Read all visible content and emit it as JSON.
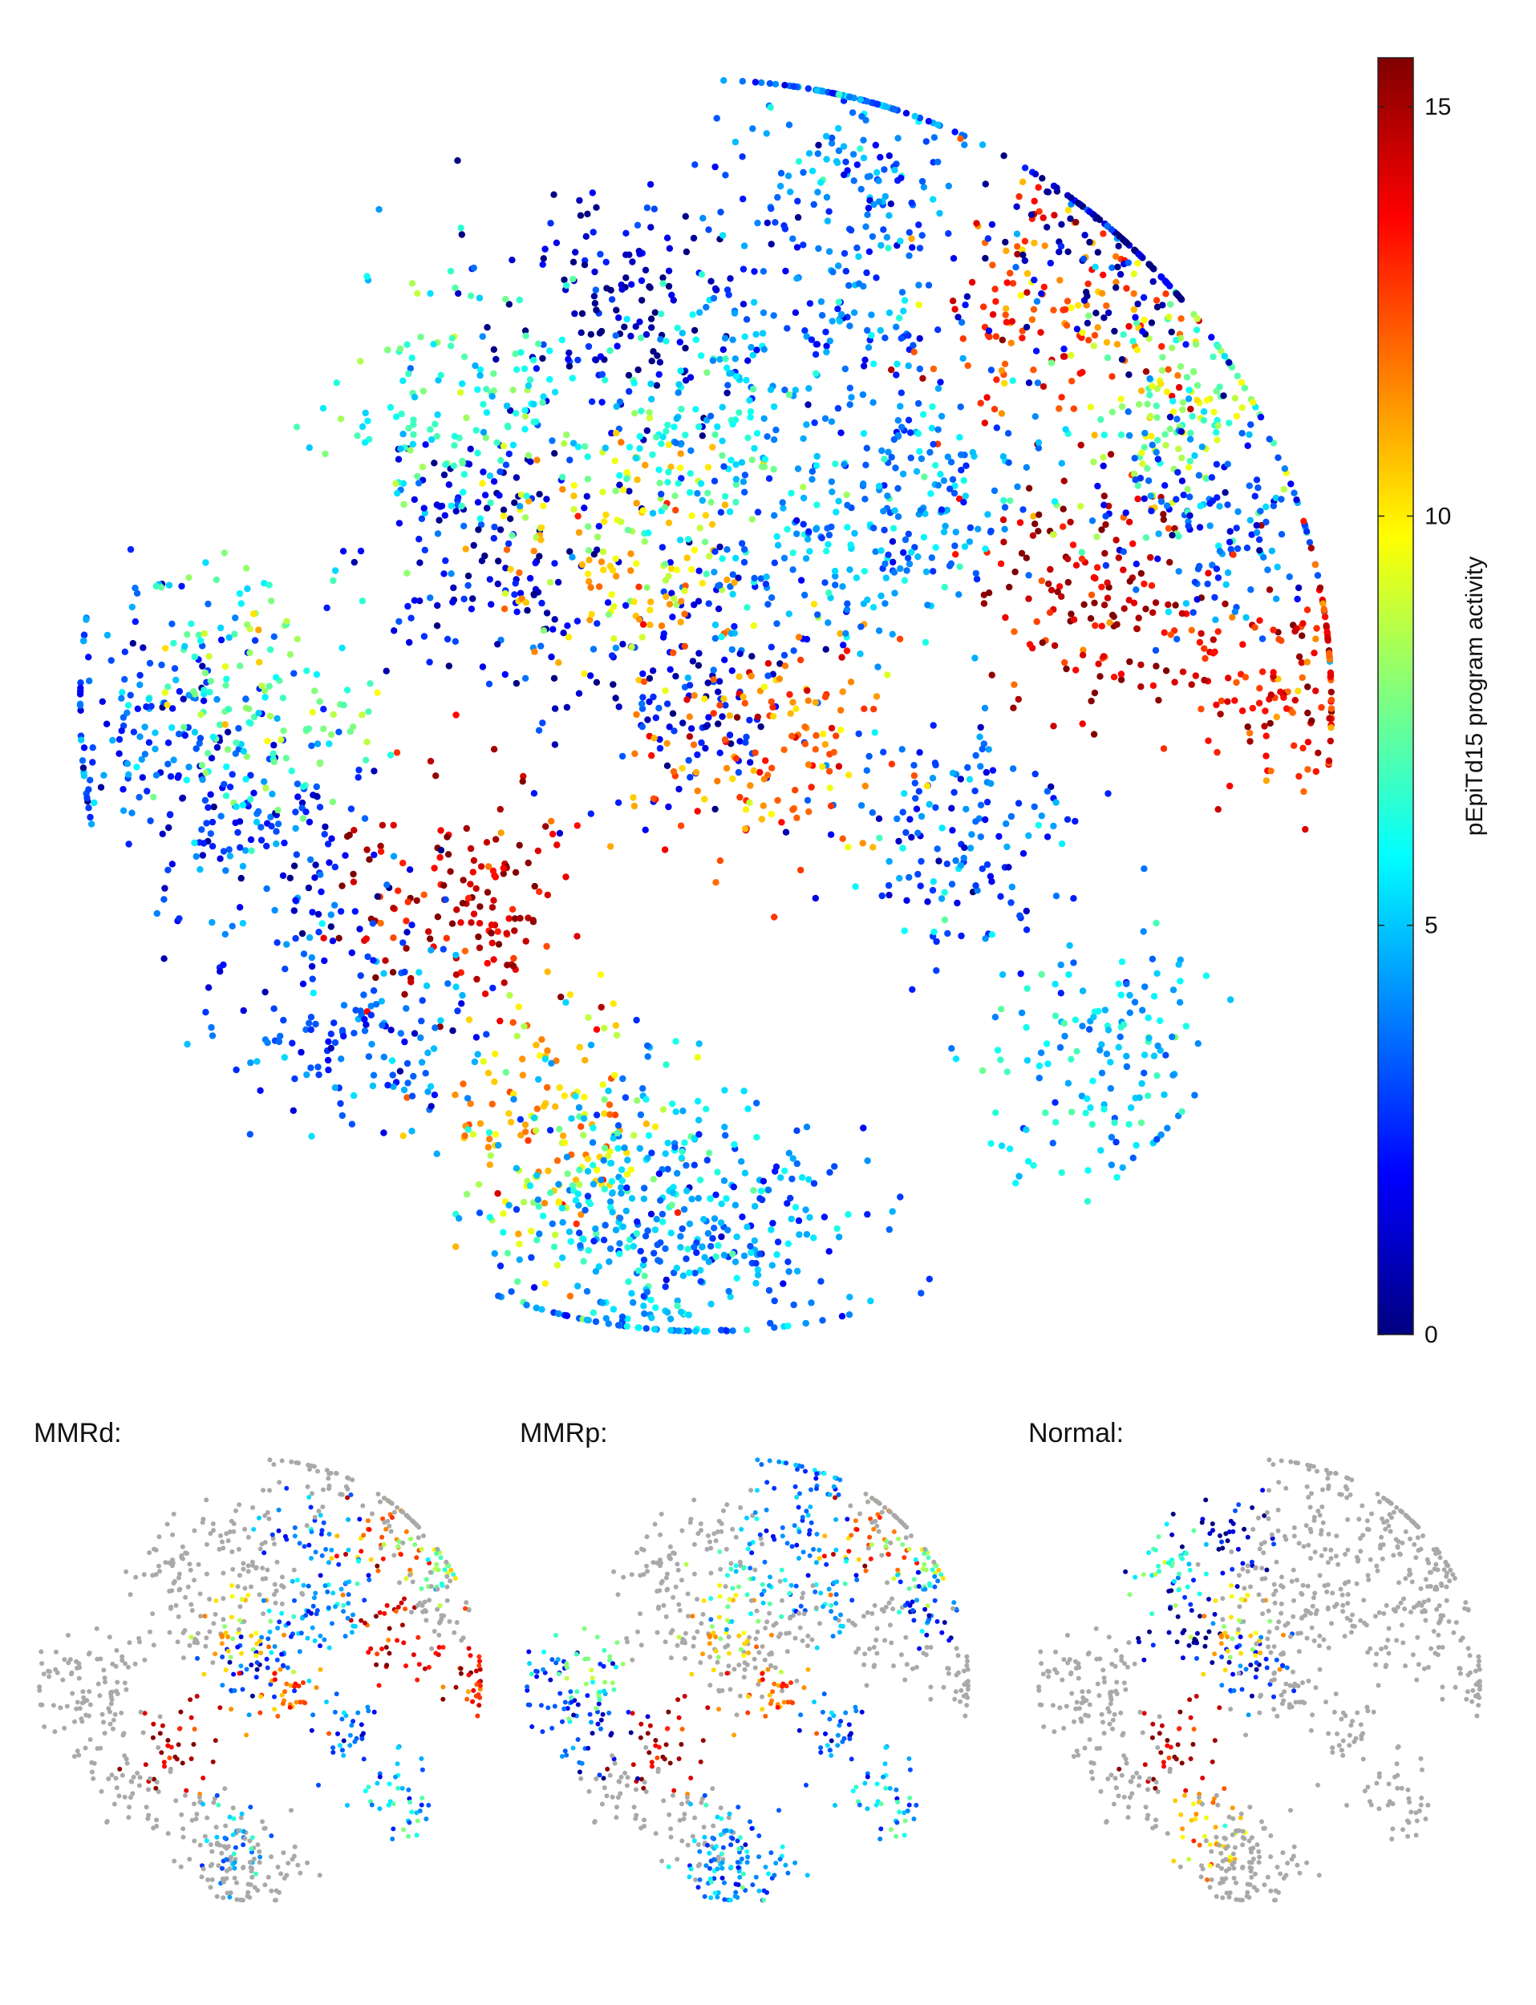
{
  "chart_data": [
    {
      "type": "scatter",
      "title": "",
      "xlabel": "",
      "ylabel": "",
      "axes_visible": false,
      "color_by": "pEpiTd15 program activity",
      "colormap": "jet",
      "colorbar": {
        "label": "pEpiTd15 program activity",
        "ticks": [
          0,
          5,
          10,
          15
        ],
        "tick_labels": [
          "0",
          "5",
          "10",
          "15"
        ],
        "range": [
          0,
          15.6
        ],
        "placement": "right"
      },
      "clusters": [
        {
          "x": -0.14,
          "y": 0.64,
          "level": 1.0
        },
        {
          "x": -0.35,
          "y": 0.26,
          "level": 1.5
        },
        {
          "x": -0.05,
          "y": 0.04,
          "level": 2.0
        },
        {
          "x": 0.41,
          "y": -0.23,
          "level": 3.5
        },
        {
          "x": -0.38,
          "y": -0.3,
          "level": 14.5
        },
        {
          "x": -0.24,
          "y": -0.68,
          "level": 10.5
        },
        {
          "x": -0.7,
          "y": -0.22,
          "level": 2.5
        },
        {
          "x": -0.88,
          "y": -0.02,
          "level": 3.0
        },
        {
          "x": -0.72,
          "y": 0.02,
          "level": 7.5
        },
        {
          "x": -0.12,
          "y": 0.24,
          "level": 10.0
        },
        {
          "x": 0.21,
          "y": 0.68,
          "level": 3.5
        },
        {
          "x": 0.26,
          "y": 0.94,
          "level": 4.0
        },
        {
          "x": 0.56,
          "y": 0.63,
          "level": 12.5
        },
        {
          "x": 0.62,
          "y": 0.2,
          "level": 14.5
        },
        {
          "x": 0.78,
          "y": 0.48,
          "level": 8.0
        },
        {
          "x": 0.82,
          "y": 0.29,
          "level": 3.0
        },
        {
          "x": 0.65,
          "y": 0.76,
          "level": 1.0
        },
        {
          "x": 0.95,
          "y": 0.04,
          "level": 13.5
        },
        {
          "x": 0.1,
          "y": -0.06,
          "level": 12.0
        },
        {
          "x": 0.36,
          "y": 0.36,
          "level": 4.5
        },
        {
          "x": 0.2,
          "y": 0.26,
          "level": 4.0
        },
        {
          "x": 0.64,
          "y": -0.56,
          "level": 5.0
        },
        {
          "x": 0.07,
          "y": -0.84,
          "level": 4.0
        },
        {
          "x": -0.12,
          "y": -0.74,
          "level": 5.0
        },
        {
          "x": -0.12,
          "y": -0.9,
          "level": 4.5
        },
        {
          "x": -0.55,
          "y": -0.52,
          "level": 3.5
        },
        {
          "x": -0.41,
          "y": 0.5,
          "level": 6.5
        },
        {
          "x": 0.0,
          "y": 0.46,
          "level": 5.5
        }
      ]
    },
    {
      "type": "scatter",
      "title": "MMRd:",
      "colormap": "jet",
      "background_color": "#a9a9a9",
      "highlighted_clusters": [
        2,
        3,
        4,
        9,
        10,
        12,
        13,
        14,
        17,
        18,
        19,
        20,
        21,
        23
      ]
    },
    {
      "type": "scatter",
      "title": "MMRp:",
      "colormap": "jet",
      "background_color": "#a9a9a9",
      "highlighted_clusters": [
        3,
        4,
        6,
        7,
        8,
        9,
        10,
        11,
        12,
        14,
        15,
        18,
        19,
        21,
        22,
        23,
        24,
        27
      ]
    },
    {
      "type": "scatter",
      "title": "Normal:",
      "colormap": "jet",
      "background_color": "#a9a9a9",
      "highlighted_clusters": [
        0,
        1,
        2,
        4,
        5,
        9,
        26
      ]
    }
  ]
}
